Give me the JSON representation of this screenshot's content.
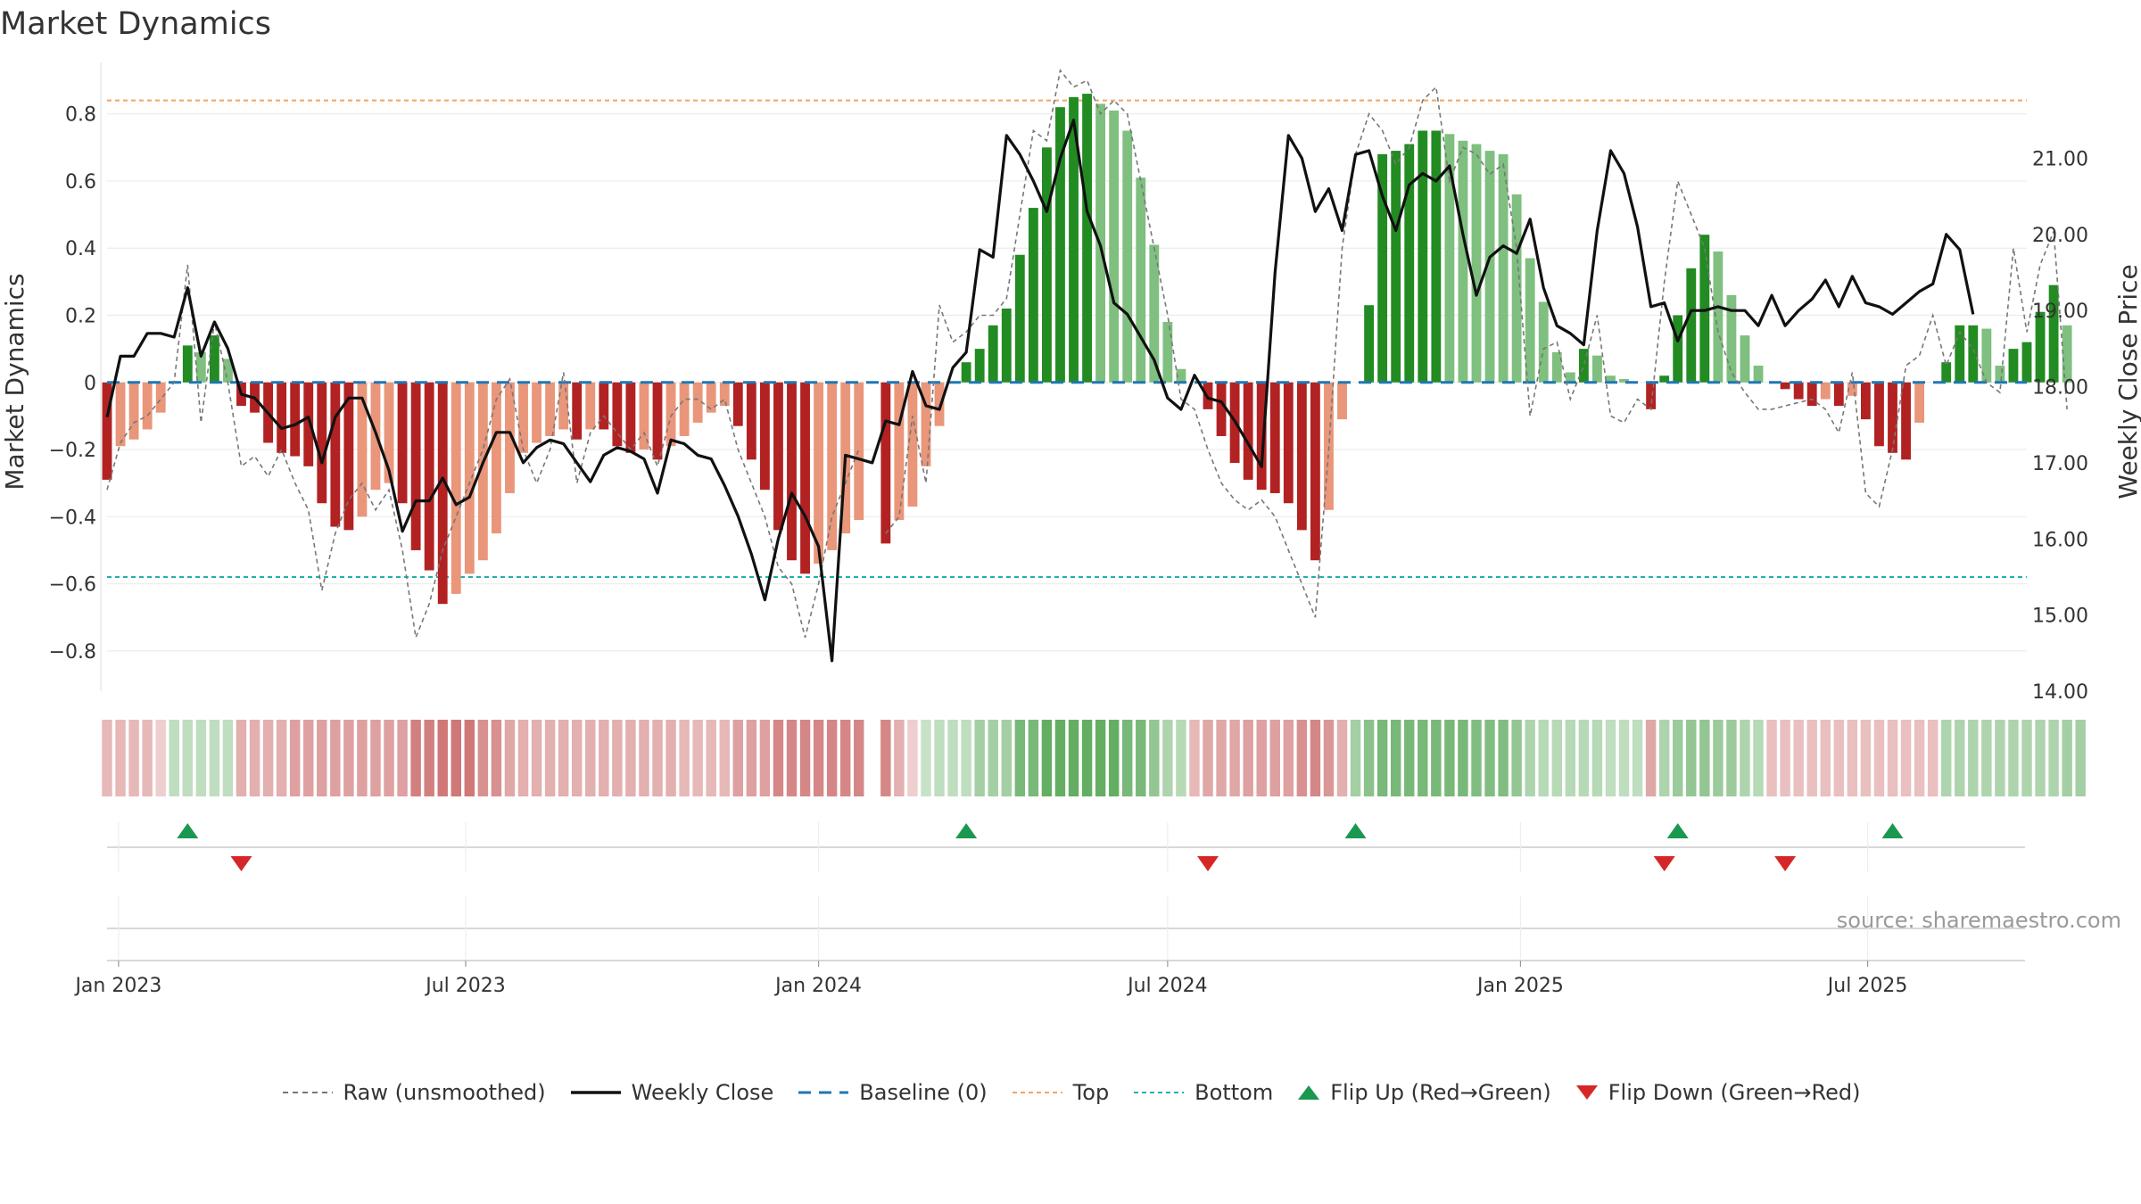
{
  "title": "Market Dynamics",
  "source": "source: sharemaestro.com",
  "colors": {
    "strong_green": "#228B22",
    "light_green": "#7FBF7F",
    "strong_red": "#B22222",
    "light_red": "#E9967A",
    "close_line": "#111111",
    "raw_line": "#777777",
    "baseline": "#1f77b4",
    "top": "#F4A460",
    "bottom": "#20B2AA",
    "flip_up": "#1a9850",
    "flip_down": "#d62728"
  },
  "chart_data": {
    "type": "bar",
    "xlabel": "",
    "ylabel": "Market Dynamics",
    "y2label": "Weekly Close Price",
    "ylim": [
      -0.92,
      0.94
    ],
    "y2lim": [
      14.0,
      22.2
    ],
    "yticks": [
      -0.8,
      -0.6,
      -0.4,
      -0.2,
      0.0,
      0.2,
      0.4,
      0.6,
      0.8
    ],
    "ytick_labels": [
      "−0.8",
      "−0.6",
      "−0.4",
      "−0.2",
      "0",
      "0.2",
      "0.4",
      "0.6",
      "0.8"
    ],
    "y2ticks": [
      14,
      15,
      16,
      17,
      18,
      19,
      20,
      21
    ],
    "y2tick_labels": [
      "14.00",
      "15.00",
      "16.00",
      "17.00",
      "18.00",
      "19.00",
      "20.00",
      "21.00"
    ],
    "xlim": [
      "2022-12-26",
      "2025-09-22"
    ],
    "xticks": [
      "2023-01-01",
      "2023-07-01",
      "2024-01-01",
      "2024-07-01",
      "2025-01-01",
      "2025-07-01"
    ],
    "xtick_labels": [
      "Jan 2023",
      "Jul 2023",
      "Jan 2024",
      "Jul 2024",
      "Jan 2025",
      "Jul 2025"
    ],
    "week_start": "2022-12-26",
    "top_level": 0.84,
    "bottom_level": -0.58,
    "baseline": 0,
    "grid": true,
    "legend_position": "bottom",
    "legend": [
      "Raw (unsmoothed)",
      "Weekly Close",
      "Baseline (0)",
      "Top",
      "Bottom",
      "Flip Up (Red→Green)",
      "Flip Down (Green→Red)"
    ],
    "momentum": [
      -0.29,
      -0.19,
      -0.17,
      -0.14,
      -0.09,
      0.0,
      0.11,
      0.09,
      0.14,
      0.07,
      -0.07,
      -0.09,
      -0.18,
      -0.21,
      -0.22,
      -0.25,
      -0.36,
      -0.43,
      -0.44,
      -0.4,
      -0.32,
      -0.3,
      -0.36,
      -0.5,
      -0.56,
      -0.66,
      -0.63,
      -0.57,
      -0.53,
      -0.45,
      -0.33,
      -0.21,
      -0.18,
      -0.16,
      -0.14,
      -0.17,
      -0.14,
      -0.14,
      -0.19,
      -0.21,
      -0.2,
      -0.23,
      -0.19,
      -0.16,
      -0.12,
      -0.09,
      -0.07,
      -0.13,
      -0.23,
      -0.32,
      -0.44,
      -0.53,
      -0.57,
      -0.54,
      -0.5,
      -0.45,
      -0.41,
      null,
      -0.48,
      -0.41,
      -0.37,
      -0.25,
      -0.13,
      0.0,
      0.06,
      0.1,
      0.17,
      0.22,
      0.38,
      0.52,
      0.7,
      0.82,
      0.85,
      0.86,
      0.83,
      0.81,
      0.75,
      0.61,
      0.41,
      0.18,
      0.04,
      0.0,
      -0.08,
      -0.16,
      -0.24,
      -0.29,
      -0.32,
      -0.33,
      -0.36,
      -0.44,
      -0.53,
      -0.38,
      -0.11,
      0.0,
      0.23,
      0.68,
      0.69,
      0.71,
      0.75,
      0.75,
      0.74,
      0.72,
      0.71,
      0.69,
      0.68,
      0.56,
      0.37,
      0.24,
      0.09,
      0.03,
      0.1,
      0.08,
      0.02,
      0.01,
      0.0,
      -0.08,
      0.02,
      0.2,
      0.34,
      0.44,
      0.39,
      0.26,
      0.14,
      0.05,
      0.0,
      -0.02,
      -0.05,
      -0.07,
      -0.05,
      -0.07,
      -0.04,
      -0.11,
      -0.19,
      -0.21,
      -0.23,
      -0.12,
      0.0,
      0.06,
      0.17,
      0.17,
      0.16,
      0.05,
      0.1,
      0.12,
      0.21,
      0.29,
      0.17
    ],
    "raw": [
      -0.32,
      -0.18,
      -0.12,
      -0.1,
      -0.05,
      0.0,
      0.35,
      -0.12,
      0.18,
      0.0,
      -0.25,
      -0.22,
      -0.28,
      -0.2,
      -0.3,
      -0.38,
      -0.62,
      -0.45,
      -0.35,
      -0.3,
      -0.38,
      -0.32,
      -0.5,
      -0.76,
      -0.66,
      -0.5,
      -0.4,
      -0.3,
      -0.2,
      -0.05,
      0.01,
      -0.2,
      -0.3,
      -0.2,
      0.03,
      -0.3,
      -0.15,
      -0.1,
      -0.15,
      -0.2,
      -0.15,
      -0.25,
      -0.1,
      -0.05,
      -0.05,
      -0.08,
      -0.05,
      -0.2,
      -0.3,
      -0.4,
      -0.55,
      -0.6,
      -0.76,
      -0.6,
      -0.4,
      -0.3,
      -0.2,
      null,
      -0.45,
      -0.4,
      -0.1,
      -0.3,
      0.23,
      0.12,
      0.15,
      0.2,
      0.2,
      0.25,
      0.5,
      0.75,
      0.72,
      0.93,
      0.88,
      0.9,
      0.8,
      0.84,
      0.8,
      0.6,
      0.4,
      0.2,
      -0.05,
      -0.08,
      -0.2,
      -0.3,
      -0.35,
      -0.38,
      -0.35,
      -0.4,
      -0.5,
      -0.6,
      -0.7,
      -0.2,
      0.4,
      0.68,
      0.8,
      0.75,
      0.65,
      0.7,
      0.84,
      0.88,
      0.6,
      0.7,
      0.68,
      0.62,
      0.65,
      0.4,
      -0.1,
      0.1,
      0.12,
      -0.05,
      0.05,
      0.2,
      -0.1,
      -0.12,
      -0.05,
      -0.08,
      0.3,
      0.6,
      0.5,
      0.4,
      0.15,
      0.03,
      -0.03,
      -0.08,
      -0.08,
      -0.07,
      -0.06,
      -0.05,
      -0.08,
      -0.15,
      0.03,
      -0.33,
      -0.37,
      -0.2,
      0.05,
      0.08,
      0.2,
      0.05,
      0.15,
      0.1,
      0.0,
      -0.03,
      0.4,
      0.15,
      0.35,
      0.45,
      -0.08
    ],
    "close": [
      17.6,
      18.4,
      18.4,
      18.7,
      18.7,
      18.65,
      19.3,
      18.4,
      18.85,
      18.5,
      17.9,
      17.85,
      17.65,
      17.45,
      17.5,
      17.6,
      17.0,
      17.6,
      17.85,
      17.85,
      17.4,
      16.9,
      16.1,
      16.5,
      16.5,
      16.8,
      16.45,
      16.55,
      17.0,
      17.4,
      17.4,
      17.0,
      17.2,
      17.3,
      17.25,
      17.0,
      16.75,
      17.1,
      17.2,
      17.15,
      17.05,
      16.6,
      17.3,
      17.25,
      17.1,
      17.05,
      16.7,
      16.3,
      15.8,
      15.2,
      16.0,
      16.6,
      16.3,
      15.9,
      14.4,
      17.1,
      17.05,
      17.0,
      17.55,
      17.5,
      18.2,
      17.75,
      17.7,
      18.25,
      18.45,
      19.8,
      19.7,
      21.3,
      21.05,
      20.7,
      20.3,
      21.0,
      21.5,
      20.3,
      19.85,
      19.1,
      18.95,
      18.65,
      18.35,
      17.85,
      17.7,
      18.15,
      17.85,
      17.8,
      17.55,
      17.25,
      16.95,
      19.5,
      21.3,
      21.0,
      20.3,
      20.6,
      20.05,
      21.05,
      21.1,
      20.5,
      20.05,
      20.65,
      20.8,
      20.7,
      20.9,
      20.0,
      19.2,
      19.7,
      19.85,
      19.75,
      20.2,
      19.3,
      18.8,
      18.7,
      18.55,
      20.05,
      21.1,
      20.8,
      20.1,
      19.05,
      19.1,
      18.6,
      19.0,
      19.0,
      19.05,
      19.0,
      19.0,
      18.8,
      19.2,
      18.8,
      19.0,
      19.15,
      19.4,
      19.05,
      19.45,
      19.1,
      19.05,
      18.95,
      19.1,
      19.25,
      19.35,
      20.0,
      19.8,
      18.95
    ],
    "regime_intensity": [
      -0.45,
      -0.45,
      -0.45,
      -0.45,
      -0.3,
      0.35,
      0.35,
      0.35,
      0.35,
      0.35,
      -0.5,
      -0.5,
      -0.5,
      -0.5,
      -0.6,
      -0.6,
      -0.6,
      -0.6,
      -0.6,
      -0.6,
      -0.6,
      -0.6,
      -0.6,
      -0.8,
      -0.8,
      -0.85,
      -0.85,
      -0.85,
      -0.7,
      -0.7,
      -0.55,
      -0.5,
      -0.5,
      -0.5,
      -0.5,
      -0.5,
      -0.5,
      -0.5,
      -0.5,
      -0.5,
      -0.5,
      -0.5,
      -0.5,
      -0.45,
      -0.45,
      -0.45,
      -0.45,
      -0.6,
      -0.6,
      -0.6,
      -0.75,
      -0.75,
      -0.75,
      -0.75,
      -0.75,
      -0.75,
      -0.75,
      null,
      -0.75,
      -0.5,
      -0.3,
      0.3,
      0.35,
      0.35,
      0.35,
      0.5,
      0.5,
      0.5,
      0.75,
      0.75,
      0.85,
      0.85,
      0.85,
      0.85,
      0.85,
      0.85,
      0.75,
      0.75,
      0.6,
      0.45,
      0.4,
      -0.45,
      -0.55,
      -0.55,
      -0.55,
      -0.6,
      -0.6,
      -0.6,
      -0.6,
      -0.7,
      -0.75,
      -0.65,
      -0.5,
      0.5,
      0.65,
      0.75,
      0.75,
      0.75,
      0.75,
      0.75,
      0.75,
      0.75,
      0.7,
      0.7,
      0.7,
      0.6,
      0.45,
      0.4,
      0.4,
      0.4,
      0.4,
      0.4,
      0.35,
      0.35,
      0.35,
      -0.55,
      0.45,
      0.55,
      0.6,
      0.6,
      0.55,
      0.55,
      0.45,
      0.4,
      -0.4,
      -0.4,
      -0.4,
      -0.4,
      -0.4,
      -0.4,
      -0.4,
      -0.4,
      -0.4,
      -0.4,
      -0.4,
      -0.4,
      -0.4,
      0.45,
      0.45,
      0.45,
      0.45,
      0.45,
      0.45,
      0.45,
      0.45,
      0.45,
      0.5,
      0.5
    ],
    "flips_up": [
      "2023-02-06",
      "2024-03-18",
      "2024-10-07",
      "2025-03-24",
      "2025-07-14"
    ],
    "flips_down": [
      "2023-03-06",
      "2024-07-22",
      "2025-03-17",
      "2025-05-19"
    ]
  }
}
